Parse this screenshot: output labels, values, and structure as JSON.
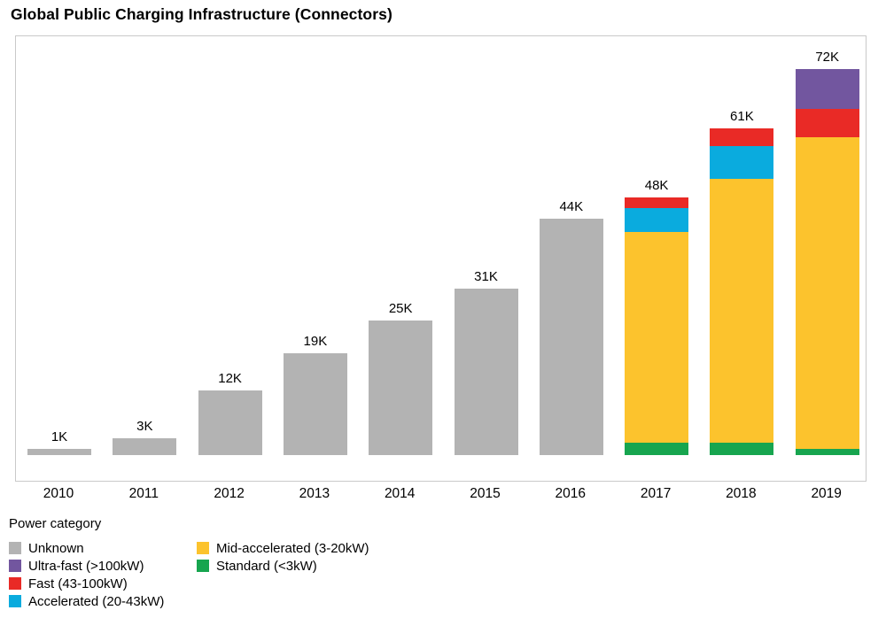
{
  "chart_data": {
    "type": "bar",
    "subtype": "stacked",
    "title": "Global Public Charging Infrastructure (Connectors)",
    "unit": "K = thousand connectors",
    "categories": [
      "2010",
      "2011",
      "2012",
      "2013",
      "2014",
      "2015",
      "2016",
      "2017",
      "2018",
      "2019"
    ],
    "totals": [
      1,
      3,
      12,
      19,
      25,
      31,
      44,
      48,
      61,
      72
    ],
    "total_labels": [
      "1K",
      "3K",
      "12K",
      "19K",
      "25K",
      "31K",
      "44K",
      "48K",
      "61K",
      "72K"
    ],
    "stack_order": [
      "Unknown",
      "Standard (<3kW)",
      "Mid-accelerated (3-20kW)",
      "Accelerated (20-43kW)",
      "Fast (43-100kW)",
      "Ultra-fast (>100kW)"
    ],
    "series": [
      {
        "name": "Unknown",
        "color": "#b3b3b3",
        "values": [
          1,
          3,
          12,
          19,
          25,
          31,
          44,
          0,
          0,
          0
        ]
      },
      {
        "name": "Ultra-fast (>100kW)",
        "color": "#72569f",
        "values": [
          0,
          0,
          0,
          0,
          0,
          0,
          0,
          0,
          0,
          7.5
        ]
      },
      {
        "name": "Fast (43-100kW)",
        "color": "#e92a26",
        "values": [
          0,
          0,
          0,
          0,
          0,
          0,
          0,
          2.1,
          3.3,
          5.3
        ]
      },
      {
        "name": "Accelerated (20-43kW)",
        "color": "#0aabde",
        "values": [
          0,
          0,
          0,
          0,
          0,
          0,
          0,
          4.4,
          6.1,
          0
        ]
      },
      {
        "name": "Mid-accelerated (3-20kW)",
        "color": "#fcc32d",
        "values": [
          0,
          0,
          0,
          0,
          0,
          0,
          0,
          39.3,
          49.2,
          58.1
        ]
      },
      {
        "name": "Standard (<3kW)",
        "color": "#17a54f",
        "values": [
          0,
          0,
          0,
          0,
          0,
          0,
          0,
          2.3,
          2.3,
          1.1
        ]
      }
    ],
    "xlabel": "",
    "ylabel": "",
    "ylim": [
      0,
      78
    ],
    "grid": "off",
    "value_labels": "total above each bar",
    "legend": {
      "title": "Power category",
      "position": "bottom-left",
      "columns": [
        [
          "Unknown",
          "Ultra-fast (>100kW)",
          "Fast (43-100kW)",
          "Accelerated (20-43kW)"
        ],
        [
          "Mid-accelerated (3-20kW)",
          "Standard (<3kW)"
        ]
      ]
    }
  }
}
